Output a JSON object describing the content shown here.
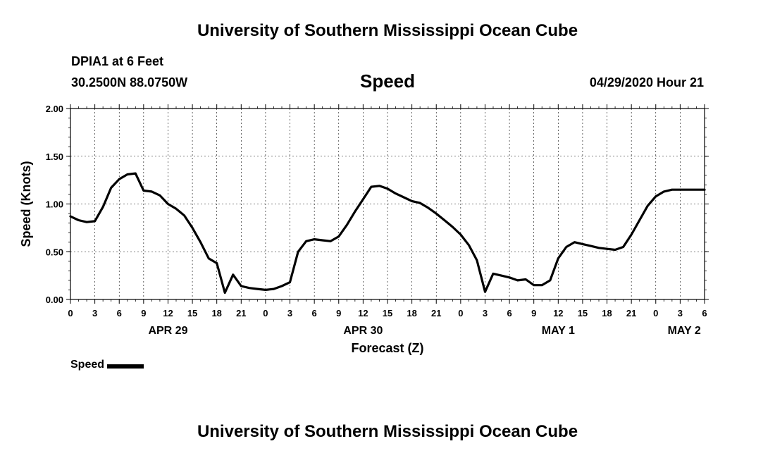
{
  "header": {
    "title": "University of Southern Mississippi Ocean Cube",
    "station": "DPIA1 at 6 Feet",
    "coordinates": "30.2500N 88.0750W",
    "datetime": "04/29/2020 Hour 21"
  },
  "footer": {
    "title": "University of Southern Mississippi Ocean Cube"
  },
  "legend": {
    "label": "Speed"
  },
  "chart_data": {
    "type": "line",
    "title": "Speed",
    "xlabel": "Forecast (Z)",
    "ylabel": "Speed (Knots)",
    "x_unit": "hours from 00Z APR 29",
    "xlim": [
      0,
      78
    ],
    "ylim": [
      0,
      2
    ],
    "grid": true,
    "y_ticks": [
      "0.00",
      "0.50",
      "1.00",
      "1.50",
      "2.00"
    ],
    "x_tick_labels": [
      "0",
      "3",
      "6",
      "9",
      "12",
      "15",
      "18",
      "21",
      "0",
      "3",
      "6",
      "9",
      "12",
      "15",
      "18",
      "21",
      "0",
      "3",
      "6",
      "9",
      "12",
      "15",
      "18",
      "21",
      "0",
      "3",
      "6"
    ],
    "date_labels": [
      {
        "label": "APR 29",
        "hour": 12
      },
      {
        "label": "APR 30",
        "hour": 36
      },
      {
        "label": "MAY 1",
        "hour": 60
      },
      {
        "label": "MAY 2",
        "hour": 75.5
      }
    ],
    "series": [
      {
        "name": "Speed",
        "color": "#000000",
        "x": [
          0,
          1,
          2,
          3,
          4,
          5,
          6,
          7,
          8,
          9,
          10,
          11,
          12,
          13,
          14,
          15,
          16,
          17,
          18,
          19,
          20,
          21,
          22,
          23,
          24,
          25,
          26,
          27,
          28,
          29,
          30,
          31,
          32,
          33,
          34,
          35,
          36,
          37,
          38,
          39,
          40,
          41,
          42,
          43,
          44,
          45,
          46,
          47,
          48,
          49,
          50,
          51,
          52,
          53,
          54,
          55,
          56,
          57,
          58,
          59,
          60,
          61,
          62,
          63,
          64,
          65,
          66,
          67,
          68,
          69,
          70,
          71,
          72,
          73,
          74,
          75,
          76,
          77,
          78
        ],
        "y": [
          0.87,
          0.83,
          0.81,
          0.82,
          0.97,
          1.17,
          1.26,
          1.31,
          1.32,
          1.14,
          1.13,
          1.09,
          1.0,
          0.95,
          0.88,
          0.75,
          0.6,
          0.43,
          0.38,
          0.07,
          0.26,
          0.14,
          0.12,
          0.11,
          0.1,
          0.11,
          0.14,
          0.18,
          0.5,
          0.61,
          0.63,
          0.62,
          0.61,
          0.66,
          0.78,
          0.92,
          1.05,
          1.18,
          1.19,
          1.16,
          1.11,
          1.07,
          1.03,
          1.01,
          0.96,
          0.9,
          0.83,
          0.76,
          0.68,
          0.57,
          0.41,
          0.08,
          0.27,
          0.25,
          0.23,
          0.2,
          0.21,
          0.15,
          0.15,
          0.2,
          0.43,
          0.55,
          0.6,
          0.58,
          0.56,
          0.54,
          0.53,
          0.52,
          0.55,
          0.68,
          0.83,
          0.98,
          1.08,
          1.13,
          1.15,
          1.15,
          1.15,
          1.15,
          1.15
        ]
      }
    ]
  }
}
